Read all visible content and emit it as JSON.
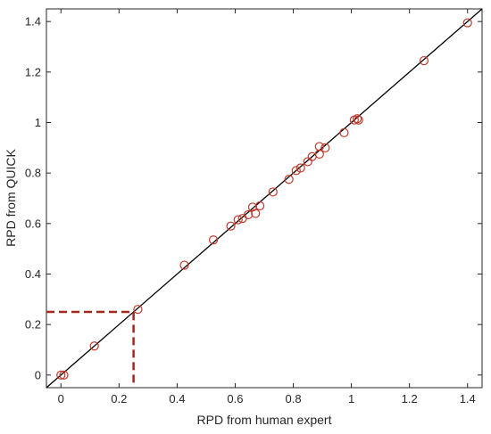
{
  "chart_data": {
    "type": "scatter",
    "title": "",
    "xlabel": "RPD from human expert",
    "ylabel": "RPD from QUICK",
    "xlim": [
      -0.05,
      1.45
    ],
    "ylim": [
      -0.05,
      1.45
    ],
    "xticks": [
      "0",
      "0.2",
      "0.4",
      "0.6",
      "0.8",
      "1",
      "1.2",
      "1.4"
    ],
    "yticks": [
      "0",
      "0.2",
      "0.4",
      "0.6",
      "0.8",
      "1",
      "1.2",
      "1.4"
    ],
    "tick_values": [
      0,
      0.2,
      0.4,
      0.6,
      0.8,
      1.0,
      1.2,
      1.4
    ],
    "grid": false,
    "reference_line": {
      "from": [
        -0.05,
        -0.05
      ],
      "to": [
        1.45,
        1.45
      ],
      "color": "#000000"
    },
    "guide_point": {
      "x": 0.25,
      "y": 0.25,
      "color": "#a0281e"
    },
    "marker_color": "#c0392b",
    "points": [
      {
        "x": 0.0,
        "y": 0.0
      },
      {
        "x": 0.01,
        "y": 0.0
      },
      {
        "x": 0.115,
        "y": 0.115
      },
      {
        "x": 0.265,
        "y": 0.26
      },
      {
        "x": 0.425,
        "y": 0.435
      },
      {
        "x": 0.525,
        "y": 0.535
      },
      {
        "x": 0.585,
        "y": 0.59
      },
      {
        "x": 0.61,
        "y": 0.615
      },
      {
        "x": 0.625,
        "y": 0.62
      },
      {
        "x": 0.645,
        "y": 0.635
      },
      {
        "x": 0.66,
        "y": 0.665
      },
      {
        "x": 0.67,
        "y": 0.64
      },
      {
        "x": 0.685,
        "y": 0.67
      },
      {
        "x": 0.73,
        "y": 0.725
      },
      {
        "x": 0.785,
        "y": 0.775
      },
      {
        "x": 0.81,
        "y": 0.81
      },
      {
        "x": 0.825,
        "y": 0.82
      },
      {
        "x": 0.85,
        "y": 0.845
      },
      {
        "x": 0.865,
        "y": 0.865
      },
      {
        "x": 0.89,
        "y": 0.875
      },
      {
        "x": 0.89,
        "y": 0.905
      },
      {
        "x": 0.91,
        "y": 0.9
      },
      {
        "x": 0.975,
        "y": 0.96
      },
      {
        "x": 1.01,
        "y": 1.01
      },
      {
        "x": 1.02,
        "y": 1.015
      },
      {
        "x": 1.025,
        "y": 1.01
      },
      {
        "x": 1.25,
        "y": 1.245
      },
      {
        "x": 1.4,
        "y": 1.395
      }
    ]
  }
}
